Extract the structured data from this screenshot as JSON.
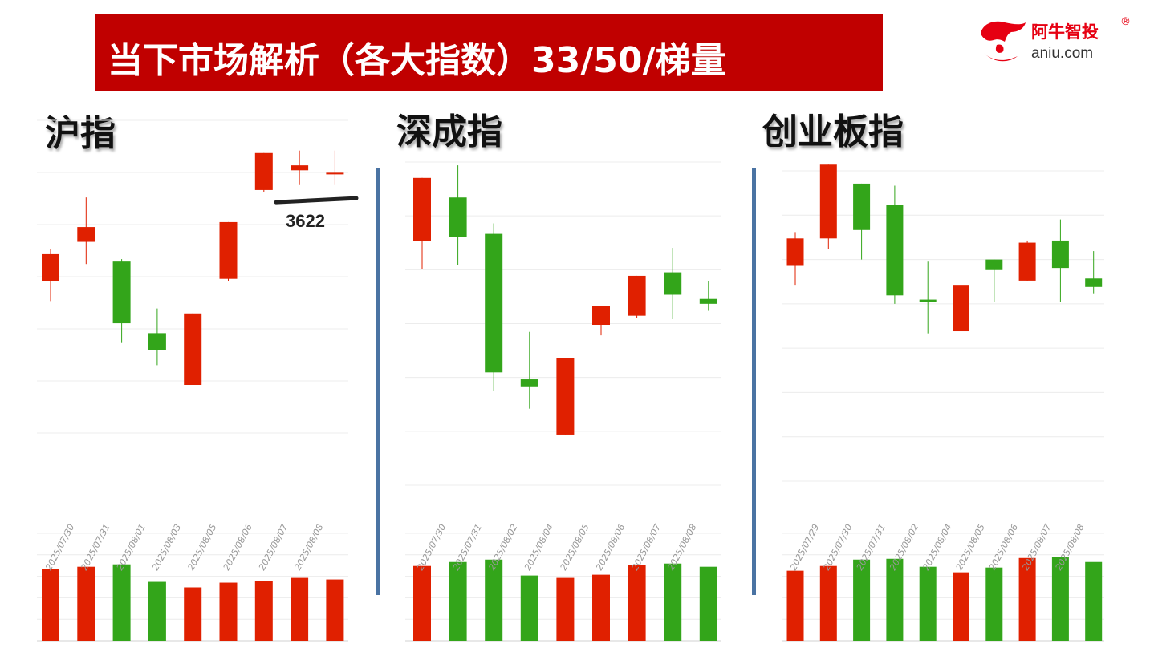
{
  "header": {
    "title": "当下市场解析（各大指数）33/50/梯量"
  },
  "logo": {
    "name_cn": "阿牛智投",
    "registered_mark": "®",
    "domain": "aniu.com"
  },
  "colors": {
    "title_bar": "#c00000",
    "up": "#e02000",
    "down": "#33a51a",
    "divider": "#4a73a3",
    "grid": "#ececec"
  },
  "chart_data": [
    {
      "type": "candlestick",
      "title": "沪指",
      "dates": [
        "2025/07/30",
        "2025/07/31",
        "2025/08/01",
        "2025/08/03",
        "2025/08/05",
        "2025/08/06",
        "2025/08/07",
        "2025/08/08",
        ""
      ],
      "candles": [
        {
          "open": 3588,
          "close": 3599,
          "high": 3601,
          "low": 3580,
          "color": "up"
        },
        {
          "open": 3604,
          "close": 3610,
          "high": 3622,
          "low": 3595,
          "color": "up"
        },
        {
          "open": 3596,
          "close": 3571,
          "high": 3597,
          "low": 3563,
          "color": "down"
        },
        {
          "open": 3567,
          "close": 3560,
          "high": 3577,
          "low": 3554,
          "color": "down"
        },
        {
          "open": 3546,
          "close": 3575,
          "high": 3575,
          "low": 3546,
          "color": "up"
        },
        {
          "open": 3589,
          "close": 3612,
          "high": 3612,
          "low": 3588,
          "color": "up"
        },
        {
          "open": 3625,
          "close": 3640,
          "high": 3640,
          "low": 3624,
          "color": "up"
        },
        {
          "open": 3633,
          "close": 3635,
          "high": 3641,
          "low": 3627,
          "color": "up"
        },
        {
          "open": 3632,
          "close": 3632,
          "high": 3641,
          "low": 3627,
          "color": "up"
        }
      ],
      "volumes": [
        {
          "value": 0.9,
          "color": "up"
        },
        {
          "value": 0.93,
          "color": "up"
        },
        {
          "value": 0.96,
          "color": "down"
        },
        {
          "value": 0.74,
          "color": "down"
        },
        {
          "value": 0.67,
          "color": "up"
        },
        {
          "value": 0.73,
          "color": "up"
        },
        {
          "value": 0.75,
          "color": "up"
        },
        {
          "value": 0.79,
          "color": "up"
        },
        {
          "value": 0.77,
          "color": "up"
        }
      ],
      "annotation": {
        "label": "3622",
        "value": 3622
      }
    },
    {
      "type": "candlestick",
      "title": "深成指",
      "dates": [
        "2025/07/30",
        "2025/07/31",
        "2025/08/02",
        "2025/08/04",
        "2025/08/05",
        "2025/08/06",
        "2025/08/07",
        "2025/08/08",
        ""
      ],
      "candles": [
        {
          "open": 11055,
          "close": 11145,
          "high": 11145,
          "low": 11015,
          "color": "up"
        },
        {
          "open": 11117,
          "close": 11060,
          "high": 11163,
          "low": 11020,
          "color": "down"
        },
        {
          "open": 11065,
          "close": 10867,
          "high": 11080,
          "low": 10840,
          "color": "down"
        },
        {
          "open": 10857,
          "close": 10847,
          "high": 10925,
          "low": 10815,
          "color": "down"
        },
        {
          "open": 10778,
          "close": 10888,
          "high": 10888,
          "low": 10778,
          "color": "up"
        },
        {
          "open": 10935,
          "close": 10962,
          "high": 10962,
          "low": 10920,
          "color": "up"
        },
        {
          "open": 10948,
          "close": 11005,
          "high": 11005,
          "low": 10945,
          "color": "up"
        },
        {
          "open": 11010,
          "close": 10978,
          "high": 11045,
          "low": 10943,
          "color": "down"
        },
        {
          "open": 10972,
          "close": 10965,
          "high": 10998,
          "low": 10955,
          "color": "down"
        }
      ],
      "volumes": [
        {
          "value": 0.94,
          "color": "up"
        },
        {
          "value": 0.99,
          "color": "down"
        },
        {
          "value": 1.02,
          "color": "down"
        },
        {
          "value": 0.82,
          "color": "down"
        },
        {
          "value": 0.79,
          "color": "up"
        },
        {
          "value": 0.83,
          "color": "up"
        },
        {
          "value": 0.95,
          "color": "up"
        },
        {
          "value": 0.97,
          "color": "down"
        },
        {
          "value": 0.93,
          "color": "down"
        }
      ]
    },
    {
      "type": "candlestick",
      "title": "创业板指",
      "dates": [
        "2025/07/29",
        "2025/07/30",
        "2025/07/31",
        "2025/08/02",
        "2025/08/04",
        "2025/08/05",
        "2025/08/06",
        "2025/08/07",
        "2025/08/08",
        ""
      ],
      "candles": [
        {
          "open": 2354,
          "close": 2367,
          "high": 2370,
          "low": 2345,
          "color": "up"
        },
        {
          "open": 2367,
          "close": 2402,
          "high": 2402,
          "low": 2362,
          "color": "up"
        },
        {
          "open": 2393,
          "close": 2371,
          "high": 2393,
          "low": 2357,
          "color": "down"
        },
        {
          "open": 2383,
          "close": 2340,
          "high": 2392,
          "low": 2336,
          "color": "down"
        },
        {
          "open": 2338,
          "close": 2337,
          "high": 2356,
          "low": 2322,
          "color": "down"
        },
        {
          "open": 2323,
          "close": 2345,
          "high": 2345,
          "low": 2321,
          "color": "up"
        },
        {
          "open": 2357,
          "close": 2352,
          "high": 2357,
          "low": 2337,
          "color": "down"
        },
        {
          "open": 2347,
          "close": 2365,
          "high": 2366,
          "low": 2347,
          "color": "up"
        },
        {
          "open": 2366,
          "close": 2353,
          "high": 2376,
          "low": 2337,
          "color": "down"
        },
        {
          "open": 2348,
          "close": 2344,
          "high": 2361,
          "low": 2341,
          "color": "down"
        }
      ],
      "volumes": [
        {
          "value": 0.88,
          "color": "up"
        },
        {
          "value": 0.94,
          "color": "up"
        },
        {
          "value": 1.02,
          "color": "down"
        },
        {
          "value": 1.03,
          "color": "down"
        },
        {
          "value": 0.93,
          "color": "down"
        },
        {
          "value": 0.86,
          "color": "up"
        },
        {
          "value": 0.92,
          "color": "down"
        },
        {
          "value": 1.04,
          "color": "up"
        },
        {
          "value": 1.05,
          "color": "down"
        },
        {
          "value": 0.99,
          "color": "down"
        }
      ]
    }
  ]
}
